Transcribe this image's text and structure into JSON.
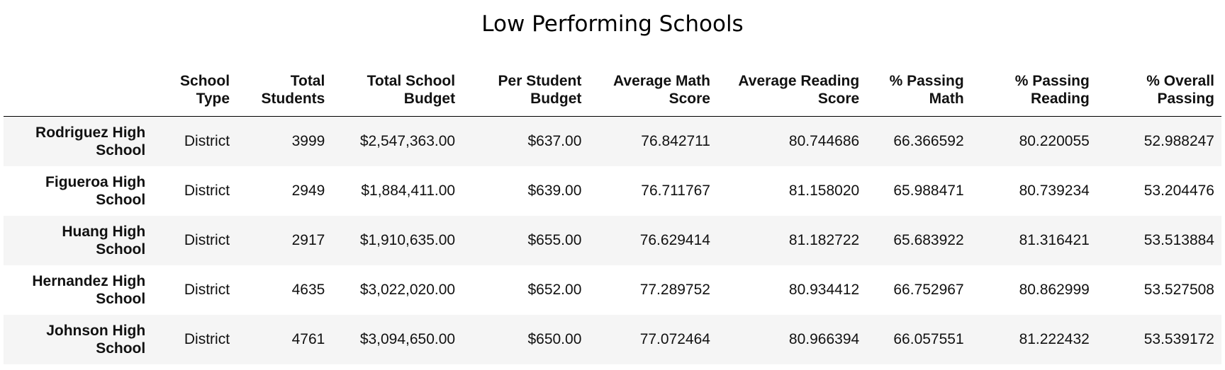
{
  "title": "Low Performing Schools",
  "columns": [
    [
      "",
      ""
    ],
    [
      "School",
      "Type"
    ],
    [
      "Total",
      "Students"
    ],
    [
      "Total School",
      "Budget"
    ],
    [
      "Per Student",
      "Budget"
    ],
    [
      "Average Math",
      "Score"
    ],
    [
      "Average Reading",
      "Score"
    ],
    [
      "% Passing",
      "Math"
    ],
    [
      "% Passing",
      "Reading"
    ],
    [
      "% Overall",
      "Passing"
    ]
  ],
  "rows": [
    {
      "name": [
        "Rodriguez High",
        "School"
      ],
      "type": "District",
      "students": "3999",
      "budget": "$2,547,363.00",
      "per_student": "$637.00",
      "avg_math": "76.842711",
      "avg_reading": "80.744686",
      "pass_math": "66.366592",
      "pass_reading": "80.220055",
      "overall": "52.988247"
    },
    {
      "name": [
        "Figueroa High",
        "School"
      ],
      "type": "District",
      "students": "2949",
      "budget": "$1,884,411.00",
      "per_student": "$639.00",
      "avg_math": "76.711767",
      "avg_reading": "81.158020",
      "pass_math": "65.988471",
      "pass_reading": "80.739234",
      "overall": "53.204476"
    },
    {
      "name": [
        "Huang High",
        "School"
      ],
      "type": "District",
      "students": "2917",
      "budget": "$1,910,635.00",
      "per_student": "$655.00",
      "avg_math": "76.629414",
      "avg_reading": "81.182722",
      "pass_math": "65.683922",
      "pass_reading": "81.316421",
      "overall": "53.513884"
    },
    {
      "name": [
        "Hernandez High",
        "School"
      ],
      "type": "District",
      "students": "4635",
      "budget": "$3,022,020.00",
      "per_student": "$652.00",
      "avg_math": "77.289752",
      "avg_reading": "80.934412",
      "pass_math": "66.752967",
      "pass_reading": "80.862999",
      "overall": "53.527508"
    },
    {
      "name": [
        "Johnson High",
        "School"
      ],
      "type": "District",
      "students": "4761",
      "budget": "$3,094,650.00",
      "per_student": "$650.00",
      "avg_math": "77.072464",
      "avg_reading": "80.966394",
      "pass_math": "66.057551",
      "pass_reading": "81.222432",
      "overall": "53.539172"
    }
  ]
}
